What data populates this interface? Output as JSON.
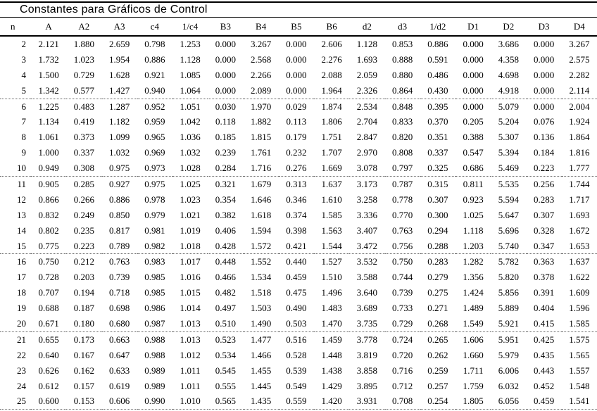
{
  "title": "Constantes para Gráficos de Control",
  "colors": {
    "background": "#ffffff",
    "text": "#000000",
    "solid_rule": "#000000",
    "dotted_rule": "#666666"
  },
  "table": {
    "columns": [
      "n",
      "A",
      "A2",
      "A3",
      "c4",
      "1/c4",
      "B3",
      "B4",
      "B5",
      "B6",
      "d2",
      "d3",
      "1/d2",
      "D1",
      "D2",
      "D3",
      "D4"
    ],
    "row_groups": [
      {
        "rows": [
          [
            "2",
            "2.121",
            "1.880",
            "2.659",
            "0.798",
            "1.253",
            "0.000",
            "3.267",
            "0.000",
            "2.606",
            "1.128",
            "0.853",
            "0.886",
            "0.000",
            "3.686",
            "0.000",
            "3.267"
          ],
          [
            "3",
            "1.732",
            "1.023",
            "1.954",
            "0.886",
            "1.128",
            "0.000",
            "2.568",
            "0.000",
            "2.276",
            "1.693",
            "0.888",
            "0.591",
            "0.000",
            "4.358",
            "0.000",
            "2.575"
          ],
          [
            "4",
            "1.500",
            "0.729",
            "1.628",
            "0.921",
            "1.085",
            "0.000",
            "2.266",
            "0.000",
            "2.088",
            "2.059",
            "0.880",
            "0.486",
            "0.000",
            "4.698",
            "0.000",
            "2.282"
          ],
          [
            "5",
            "1.342",
            "0.577",
            "1.427",
            "0.940",
            "1.064",
            "0.000",
            "2.089",
            "0.000",
            "1.964",
            "2.326",
            "0.864",
            "0.430",
            "0.000",
            "4.918",
            "0.000",
            "2.114"
          ]
        ]
      },
      {
        "rows": [
          [
            "6",
            "1.225",
            "0.483",
            "1.287",
            "0.952",
            "1.051",
            "0.030",
            "1.970",
            "0.029",
            "1.874",
            "2.534",
            "0.848",
            "0.395",
            "0.000",
            "5.079",
            "0.000",
            "2.004"
          ],
          [
            "7",
            "1.134",
            "0.419",
            "1.182",
            "0.959",
            "1.042",
            "0.118",
            "1.882",
            "0.113",
            "1.806",
            "2.704",
            "0.833",
            "0.370",
            "0.205",
            "5.204",
            "0.076",
            "1.924"
          ],
          [
            "8",
            "1.061",
            "0.373",
            "1.099",
            "0.965",
            "1.036",
            "0.185",
            "1.815",
            "0.179",
            "1.751",
            "2.847",
            "0.820",
            "0.351",
            "0.388",
            "5.307",
            "0.136",
            "1.864"
          ],
          [
            "9",
            "1.000",
            "0.337",
            "1.032",
            "0.969",
            "1.032",
            "0.239",
            "1.761",
            "0.232",
            "1.707",
            "2.970",
            "0.808",
            "0.337",
            "0.547",
            "5.394",
            "0.184",
            "1.816"
          ],
          [
            "10",
            "0.949",
            "0.308",
            "0.975",
            "0.973",
            "1.028",
            "0.284",
            "1.716",
            "0.276",
            "1.669",
            "3.078",
            "0.797",
            "0.325",
            "0.686",
            "5.469",
            "0.223",
            "1.777"
          ]
        ]
      },
      {
        "rows": [
          [
            "11",
            "0.905",
            "0.285",
            "0.927",
            "0.975",
            "1.025",
            "0.321",
            "1.679",
            "0.313",
            "1.637",
            "3.173",
            "0.787",
            "0.315",
            "0.811",
            "5.535",
            "0.256",
            "1.744"
          ],
          [
            "12",
            "0.866",
            "0.266",
            "0.886",
            "0.978",
            "1.023",
            "0.354",
            "1.646",
            "0.346",
            "1.610",
            "3.258",
            "0.778",
            "0.307",
            "0.923",
            "5.594",
            "0.283",
            "1.717"
          ],
          [
            "13",
            "0.832",
            "0.249",
            "0.850",
            "0.979",
            "1.021",
            "0.382",
            "1.618",
            "0.374",
            "1.585",
            "3.336",
            "0.770",
            "0.300",
            "1.025",
            "5.647",
            "0.307",
            "1.693"
          ],
          [
            "14",
            "0.802",
            "0.235",
            "0.817",
            "0.981",
            "1.019",
            "0.406",
            "1.594",
            "0.398",
            "1.563",
            "3.407",
            "0.763",
            "0.294",
            "1.118",
            "5.696",
            "0.328",
            "1.672"
          ],
          [
            "15",
            "0.775",
            "0.223",
            "0.789",
            "0.982",
            "1.018",
            "0.428",
            "1.572",
            "0.421",
            "1.544",
            "3.472",
            "0.756",
            "0.288",
            "1.203",
            "5.740",
            "0.347",
            "1.653"
          ]
        ]
      },
      {
        "rows": [
          [
            "16",
            "0.750",
            "0.212",
            "0.763",
            "0.983",
            "1.017",
            "0.448",
            "1.552",
            "0.440",
            "1.527",
            "3.532",
            "0.750",
            "0.283",
            "1.282",
            "5.782",
            "0.363",
            "1.637"
          ],
          [
            "17",
            "0.728",
            "0.203",
            "0.739",
            "0.985",
            "1.016",
            "0.466",
            "1.534",
            "0.459",
            "1.510",
            "3.588",
            "0.744",
            "0.279",
            "1.356",
            "5.820",
            "0.378",
            "1.622"
          ],
          [
            "18",
            "0.707",
            "0.194",
            "0.718",
            "0.985",
            "1.015",
            "0.482",
            "1.518",
            "0.475",
            "1.496",
            "3.640",
            "0.739",
            "0.275",
            "1.424",
            "5.856",
            "0.391",
            "1.609"
          ],
          [
            "19",
            "0.688",
            "0.187",
            "0.698",
            "0.986",
            "1.014",
            "0.497",
            "1.503",
            "0.490",
            "1.483",
            "3.689",
            "0.733",
            "0.271",
            "1.489",
            "5.889",
            "0.404",
            "1.596"
          ],
          [
            "20",
            "0.671",
            "0.180",
            "0.680",
            "0.987",
            "1.013",
            "0.510",
            "1.490",
            "0.503",
            "1.470",
            "3.735",
            "0.729",
            "0.268",
            "1.549",
            "5.921",
            "0.415",
            "1.585"
          ]
        ]
      },
      {
        "rows": [
          [
            "21",
            "0.655",
            "0.173",
            "0.663",
            "0.988",
            "1.013",
            "0.523",
            "1.477",
            "0.516",
            "1.459",
            "3.778",
            "0.724",
            "0.265",
            "1.606",
            "5.951",
            "0.425",
            "1.575"
          ],
          [
            "22",
            "0.640",
            "0.167",
            "0.647",
            "0.988",
            "1.012",
            "0.534",
            "1.466",
            "0.528",
            "1.448",
            "3.819",
            "0.720",
            "0.262",
            "1.660",
            "5.979",
            "0.435",
            "1.565"
          ],
          [
            "23",
            "0.626",
            "0.162",
            "0.633",
            "0.989",
            "1.011",
            "0.545",
            "1.455",
            "0.539",
            "1.438",
            "3.858",
            "0.716",
            "0.259",
            "1.711",
            "6.006",
            "0.443",
            "1.557"
          ],
          [
            "24",
            "0.612",
            "0.157",
            "0.619",
            "0.989",
            "1.011",
            "0.555",
            "1.445",
            "0.549",
            "1.429",
            "3.895",
            "0.712",
            "0.257",
            "1.759",
            "6.032",
            "0.452",
            "1.548"
          ],
          [
            "25",
            "0.600",
            "0.153",
            "0.606",
            "0.990",
            "1.010",
            "0.565",
            "1.435",
            "0.559",
            "1.420",
            "3.931",
            "0.708",
            "0.254",
            "1.805",
            "6.056",
            "0.459",
            "1.541"
          ]
        ]
      }
    ]
  }
}
